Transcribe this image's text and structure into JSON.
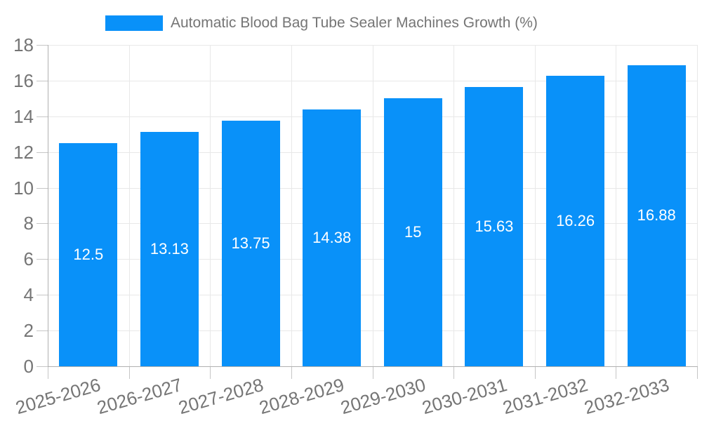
{
  "colors": {
    "bar": "#0991f9",
    "axis_line": "#b0b0b0",
    "gridline": "#e8e8e8",
    "tick_mark": "#c6c6c6",
    "tick_text": "#757575",
    "legend_text": "#757575",
    "value_text": "#ffffff",
    "background": "#ffffff"
  },
  "chart_data": {
    "type": "bar",
    "title": "Automatic Blood Bag Tube Sealer Machines Growth (%)",
    "categories": [
      "2025-2026",
      "2026-2027",
      "2027-2028",
      "2028-2029",
      "2029-2030",
      "2030-2031",
      "2031-2032",
      "2032-2033"
    ],
    "values": [
      12.5,
      13.13,
      13.75,
      14.38,
      15,
      15.63,
      16.26,
      16.88
    ],
    "value_labels": [
      "12.5",
      "13.13",
      "13.75",
      "14.38",
      "15",
      "15.63",
      "16.26",
      "16.88"
    ],
    "ytick_labels": [
      "0",
      "2",
      "4",
      "6",
      "8",
      "10",
      "12",
      "14",
      "16",
      "18"
    ],
    "yticks": [
      0,
      2,
      4,
      6,
      8,
      10,
      12,
      14,
      16,
      18
    ],
    "ylim": [
      0,
      18
    ],
    "ytick_step": 2,
    "xlabel": "",
    "ylabel": "",
    "grid": true,
    "legend_position": "top-center",
    "x_label_rotation_deg": -16,
    "value_label_position": "center-of-bar"
  }
}
